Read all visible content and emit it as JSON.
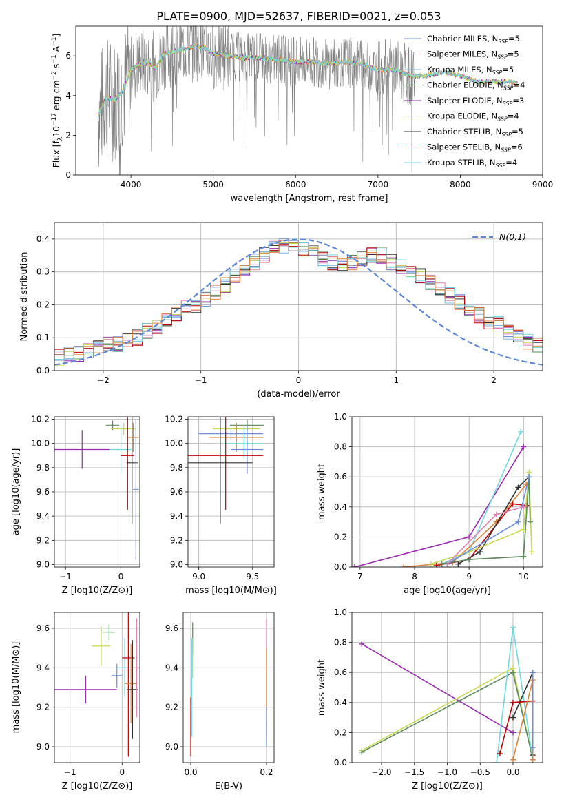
{
  "title": "PLATE=0900, MJD=52637, FIBERID=0021, z=0.053",
  "series_colors": [
    "#6a8fd8",
    "#e080b0",
    "#7ab8e0",
    "#5a8a5a",
    "#9a2ab0",
    "#c8d850",
    "#303030",
    "#c00000",
    "#70d8e0"
  ],
  "chart_data": [
    {
      "id": "spectrum",
      "type": "line",
      "xlabel": "wavelength [Angstrom, rest frame]",
      "ylabel": "Flux [f_λ10^-17 erg cm^-2 s^-1 A^-1]",
      "xlim": [
        3330,
        9000
      ],
      "ylim": [
        0,
        7.5
      ],
      "xticks": [
        4000,
        5000,
        6000,
        7000,
        8000,
        9000
      ],
      "yticks": [
        0,
        2,
        4,
        6
      ],
      "observed_color": "#808080",
      "model_color": "#7ad8dc",
      "continuum": [
        [
          3600,
          3.0
        ],
        [
          3700,
          3.9
        ],
        [
          3800,
          3.8
        ],
        [
          3900,
          4.2
        ],
        [
          4000,
          5.3
        ],
        [
          4100,
          5.6
        ],
        [
          4200,
          5.7
        ],
        [
          4300,
          5.4
        ],
        [
          4400,
          6.1
        ],
        [
          4500,
          6.2
        ],
        [
          4600,
          6.3
        ],
        [
          4700,
          6.4
        ],
        [
          4800,
          6.5
        ],
        [
          4900,
          6.4
        ],
        [
          5000,
          6.1
        ],
        [
          5200,
          6.0
        ],
        [
          5400,
          5.9
        ],
        [
          5600,
          5.9
        ],
        [
          5800,
          5.8
        ],
        [
          6000,
          5.7
        ],
        [
          6200,
          5.7
        ],
        [
          6400,
          5.6
        ],
        [
          6600,
          5.7
        ],
        [
          6800,
          5.6
        ],
        [
          7000,
          5.3
        ],
        [
          7200,
          5.3
        ],
        [
          7400,
          5.0
        ],
        [
          7600,
          5.0
        ],
        [
          7800,
          5.2
        ],
        [
          8000,
          5.0
        ],
        [
          8200,
          4.7
        ],
        [
          8400,
          4.7
        ],
        [
          8600,
          4.7
        ],
        [
          8700,
          4.6
        ]
      ],
      "legend": {
        "location": "upper right",
        "entries": [
          {
            "label": "Chabrier MILES, N_SSP=5",
            "color": "#6a8fd8"
          },
          {
            "label": "Salpeter MILES, N_SSP=5",
            "color": "#e080b0"
          },
          {
            "label": "Kroupa MILES, N_SSP=5",
            "color": "#7ab8e0"
          },
          {
            "label": "Chabrier ELODIE, N_SSP=4",
            "color": "#5a8a5a"
          },
          {
            "label": "Salpeter ELODIE, N_SSP=3",
            "color": "#9a2ab0"
          },
          {
            "label": "Kroupa ELODIE, N_SSP=4",
            "color": "#c8d850"
          },
          {
            "label": "Chabrier STELIB, N_SSP=5",
            "color": "#303030"
          },
          {
            "label": "Salpeter STELIB, N_SSP=6",
            "color": "#c00000"
          },
          {
            "label": "Kroupa STELIB, N_SSP=4",
            "color": "#70d8e0"
          }
        ]
      }
    },
    {
      "id": "residuals",
      "type": "line",
      "xlabel": "(data-model)/error",
      "ylabel": "Normed distribution",
      "xlim": [
        -2.5,
        2.5
      ],
      "ylim": [
        0,
        0.45
      ],
      "xticks": [
        -2,
        -1,
        0,
        1,
        2
      ],
      "yticks": [
        0.0,
        0.1,
        0.2,
        0.3,
        0.4
      ],
      "reference_label": "N(0,1)",
      "reference_color": "#5b86d6",
      "histogram_envelope": [
        0.04,
        0.05,
        0.05,
        0.06,
        0.07,
        0.08,
        0.08,
        0.09,
        0.1,
        0.12,
        0.13,
        0.15,
        0.17,
        0.19,
        0.2,
        0.22,
        0.24,
        0.26,
        0.29,
        0.31,
        0.33,
        0.35,
        0.37,
        0.38,
        0.38,
        0.37,
        0.36,
        0.34,
        0.33,
        0.32,
        0.33,
        0.34,
        0.35,
        0.35,
        0.33,
        0.32,
        0.31,
        0.29,
        0.27,
        0.25,
        0.23,
        0.21,
        0.19,
        0.17,
        0.15,
        0.14,
        0.12,
        0.11,
        0.09,
        0.08
      ]
    },
    {
      "id": "age-vs-Z",
      "type": "scatter",
      "xlabel": "Z [log10(Z/Z⊙)]",
      "ylabel": "age [log10(age/yr)]",
      "xlim": [
        -1.2,
        0.34
      ],
      "ylim": [
        8.98,
        10.22
      ],
      "xticks": [
        -1,
        0
      ],
      "yticks": [
        9.0,
        9.2,
        9.4,
        9.6,
        9.8,
        10.0,
        10.2
      ],
      "points": [
        {
          "x": -0.7,
          "y": 9.95,
          "xerr": 0.5,
          "yerr": 0.16,
          "color": "#9a2ab0"
        },
        {
          "x": -0.15,
          "y": 10.15,
          "xerr": 0.12,
          "yerr": 0.04,
          "color": "#5a8a5a"
        },
        {
          "x": 0.05,
          "y": 10.12,
          "xerr": 0.22,
          "yerr": 0.05,
          "color": "#c8d850"
        },
        {
          "x": 0.22,
          "y": 10.05,
          "xerr": 0.1,
          "yerr": 0.12,
          "color": "#e0803a"
        },
        {
          "x": 0.0,
          "y": 9.95,
          "xerr": 0.2,
          "yerr": 0.2,
          "color": "#70d8e0"
        },
        {
          "x": 0.12,
          "y": 9.9,
          "xerr": 0.12,
          "yerr": 0.45,
          "color": "#c00000"
        },
        {
          "x": 0.2,
          "y": 9.84,
          "xerr": 0.1,
          "yerr": 0.5,
          "color": "#303030"
        },
        {
          "x": 0.27,
          "y": 9.62,
          "xerr": 0.05,
          "yerr": 0.58,
          "color": "#6a8fd8"
        }
      ]
    },
    {
      "id": "age-vs-mass",
      "type": "scatter",
      "xlabel": "mass [log10(M/M⊙)]",
      "ylabel": "",
      "xlim": [
        8.9,
        9.7
      ],
      "ylim": [
        8.98,
        10.22
      ],
      "xticks": [
        9.0,
        9.5
      ],
      "yticks": [
        9.0,
        9.2,
        9.4,
        9.6,
        9.8,
        10.0,
        10.2
      ],
      "points": [
        {
          "x": 9.45,
          "y": 10.15,
          "xerr": 0.16,
          "yerr": 0.05,
          "color": "#5a8a5a"
        },
        {
          "x": 9.35,
          "y": 10.12,
          "xerr": 0.22,
          "yerr": 0.05,
          "color": "#c8d850"
        },
        {
          "x": 9.3,
          "y": 10.08,
          "xerr": 0.3,
          "yerr": 0.05,
          "color": "#6a8fd8"
        },
        {
          "x": 9.35,
          "y": 10.05,
          "xerr": 0.25,
          "yerr": 0.12,
          "color": "#e0803a"
        },
        {
          "x": 9.42,
          "y": 10.0,
          "xerr": 0.18,
          "yerr": 0.12,
          "color": "#70d8e0"
        },
        {
          "x": 9.45,
          "y": 9.95,
          "xerr": 0.15,
          "yerr": 0.2,
          "color": "#6a8fd8"
        },
        {
          "x": 9.25,
          "y": 9.9,
          "xerr": 0.35,
          "yerr": 0.45,
          "color": "#c00000"
        },
        {
          "x": 9.2,
          "y": 9.84,
          "xerr": 0.3,
          "yerr": 0.5,
          "color": "#303030"
        }
      ]
    },
    {
      "id": "massweight-vs-age",
      "type": "line",
      "xlabel": "age [log10(age/yr)]",
      "ylabel": "mass weight",
      "xlim": [
        6.85,
        10.35
      ],
      "ylim": [
        0,
        1
      ],
      "xticks": [
        7,
        8,
        9,
        10
      ],
      "yticks": [
        0.0,
        0.2,
        0.4,
        0.6,
        0.8,
        1.0
      ],
      "series": [
        {
          "color": "#9a2ab0",
          "points": [
            [
              6.9,
              0.0
            ],
            [
              9.0,
              0.2
            ],
            [
              10.0,
              0.8
            ]
          ]
        },
        {
          "color": "#70d8e0",
          "points": [
            [
              8.5,
              0.02
            ],
            [
              9.0,
              0.1
            ],
            [
              9.95,
              0.9
            ]
          ]
        },
        {
          "color": "#e0803a",
          "points": [
            [
              7.8,
              0.0
            ],
            [
              8.7,
              0.03
            ],
            [
              9.5,
              0.3
            ],
            [
              10.05,
              0.55
            ]
          ]
        },
        {
          "color": "#c00000",
          "points": [
            [
              8.4,
              0.01
            ],
            [
              9.0,
              0.05
            ],
            [
              9.8,
              0.42
            ],
            [
              10.05,
              0.41
            ]
          ]
        },
        {
          "color": "#303030",
          "points": [
            [
              8.8,
              0.02
            ],
            [
              9.2,
              0.1
            ],
            [
              9.9,
              0.53
            ],
            [
              10.1,
              0.6
            ]
          ]
        },
        {
          "color": "#c8d850",
          "points": [
            [
              8.3,
              0.02
            ],
            [
              9.0,
              0.1
            ],
            [
              10.0,
              0.25
            ],
            [
              10.1,
              0.63
            ],
            [
              10.15,
              0.1
            ]
          ]
        },
        {
          "color": "#5a8a5a",
          "points": [
            [
              8.5,
              0.02
            ],
            [
              9.0,
              0.05
            ],
            [
              10.0,
              0.07
            ],
            [
              10.1,
              0.6
            ],
            [
              10.12,
              0.3
            ]
          ]
        },
        {
          "color": "#6a8fd8",
          "points": [
            [
              8.6,
              0.02
            ],
            [
              9.9,
              0.3
            ],
            [
              10.1,
              0.6
            ]
          ]
        },
        {
          "color": "#e080b0",
          "points": [
            [
              8.6,
              0.02
            ],
            [
              9.5,
              0.35
            ],
            [
              10.0,
              0.4
            ]
          ]
        }
      ]
    },
    {
      "id": "mass-vs-Z",
      "type": "scatter",
      "xlabel": "Z [log10(Z/Z⊙)]",
      "ylabel": "mass [log10(M/M⊙)]",
      "xlim": [
        -1.3,
        0.34
      ],
      "ylim": [
        8.92,
        9.68
      ],
      "xticks": [
        -1,
        0
      ],
      "yticks": [
        9.0,
        9.2,
        9.4,
        9.6
      ],
      "points": [
        {
          "x": -0.7,
          "y": 9.29,
          "xerr": 0.6,
          "yerr": 0.07,
          "color": "#9a2ab0"
        },
        {
          "x": -0.25,
          "y": 9.58,
          "xerr": 0.12,
          "yerr": 0.04,
          "color": "#5a8a5a"
        },
        {
          "x": -0.4,
          "y": 9.51,
          "xerr": 0.18,
          "yerr": 0.1,
          "color": "#c8d850"
        },
        {
          "x": -0.1,
          "y": 9.36,
          "xerr": 0.1,
          "yerr": 0.06,
          "color": "#6a8fd8"
        },
        {
          "x": 0.05,
          "y": 9.4,
          "xerr": 0.15,
          "yerr": 0.15,
          "color": "#70d8e0"
        },
        {
          "x": 0.12,
          "y": 9.45,
          "xerr": 0.12,
          "yerr": 0.5,
          "color": "#c00000"
        },
        {
          "x": 0.17,
          "y": 9.32,
          "xerr": 0.12,
          "yerr": 0.2,
          "color": "#e0803a"
        },
        {
          "x": 0.2,
          "y": 9.29,
          "xerr": 0.1,
          "yerr": 0.25,
          "color": "#303030"
        },
        {
          "x": 0.28,
          "y": 9.4,
          "xerr": 0.05,
          "yerr": 0.25,
          "color": "#e080b0"
        }
      ]
    },
    {
      "id": "mass-vs-EBV",
      "type": "scatter",
      "xlabel": "E(B-V)",
      "ylabel": "",
      "xlim": [
        -0.02,
        0.22
      ],
      "ylim": [
        8.92,
        9.68
      ],
      "xticks": [
        0.0,
        0.2
      ],
      "yticks": [
        9.0,
        9.2,
        9.4,
        9.6
      ],
      "points": [
        {
          "x": 0.005,
          "y": 9.55,
          "xerr": 0,
          "yerr": 0.08,
          "color": "#5a8a5a"
        },
        {
          "x": 0.005,
          "y": 9.45,
          "xerr": 0,
          "yerr": 0.1,
          "color": "#c8d850"
        },
        {
          "x": 0.003,
          "y": 9.3,
          "xerr": 0,
          "yerr": 0.25,
          "color": "#70d8e0"
        },
        {
          "x": 0.0,
          "y": 9.1,
          "xerr": 0,
          "yerr": 0.15,
          "color": "#c00000"
        },
        {
          "x": 0.2,
          "y": 9.35,
          "xerr": 0,
          "yerr": 0.3,
          "color": "#e080b0"
        },
        {
          "x": 0.2,
          "y": 9.3,
          "xerr": 0,
          "yerr": 0.2,
          "color": "#e0803a"
        },
        {
          "x": 0.2,
          "y": 9.1,
          "xerr": 0,
          "yerr": 0.1,
          "color": "#6a8fd8"
        }
      ]
    },
    {
      "id": "massweight-vs-Z",
      "type": "line",
      "xlabel": "Z [log10(Z/Z⊙)]",
      "ylabel": "mass weight",
      "xlim": [
        -2.45,
        0.45
      ],
      "ylim": [
        0,
        1
      ],
      "xticks": [
        -2.0,
        -1.5,
        -1.0,
        -0.5,
        0.0
      ],
      "yticks": [
        0.0,
        0.2,
        0.4,
        0.6,
        0.8,
        1.0
      ],
      "series": [
        {
          "color": "#9a2ab0",
          "points": [
            [
              -2.3,
              0.79
            ],
            [
              0.0,
              0.2
            ]
          ]
        },
        {
          "color": "#c8d850",
          "points": [
            [
              -2.3,
              0.08
            ],
            [
              0.0,
              0.63
            ],
            [
              0.3,
              0.02
            ]
          ]
        },
        {
          "color": "#5a8a5a",
          "points": [
            [
              -2.3,
              0.07
            ],
            [
              0.0,
              0.6
            ],
            [
              0.3,
              0.02
            ]
          ]
        },
        {
          "color": "#70d8e0",
          "points": [
            [
              -0.25,
              0.0
            ],
            [
              0.0,
              0.9
            ],
            [
              0.3,
              0.02
            ]
          ]
        },
        {
          "color": "#303030",
          "points": [
            [
              0.0,
              0.3
            ],
            [
              0.3,
              0.6
            ],
            [
              0.3,
              0.05
            ]
          ]
        },
        {
          "color": "#c00000",
          "points": [
            [
              -0.2,
              0.06
            ],
            [
              0.0,
              0.4
            ],
            [
              0.3,
              0.41
            ]
          ]
        },
        {
          "color": "#e0803a",
          "points": [
            [
              0.0,
              0.02
            ],
            [
              0.3,
              0.55
            ],
            [
              0.3,
              0.02
            ]
          ]
        },
        {
          "color": "#6a8fd8",
          "points": [
            [
              0.3,
              0.6
            ],
            [
              0.3,
              0.1
            ]
          ]
        }
      ]
    }
  ]
}
